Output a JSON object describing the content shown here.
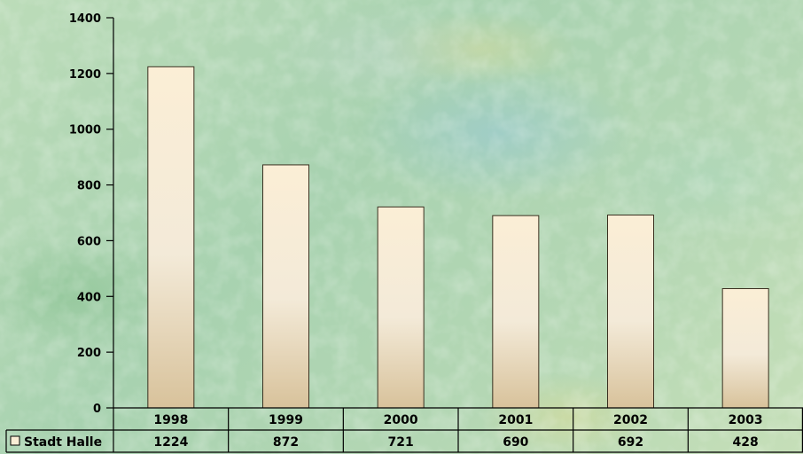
{
  "chart_data": {
    "type": "bar",
    "categories": [
      "1998",
      "1999",
      "2000",
      "2001",
      "2002",
      "2003"
    ],
    "series": [
      {
        "name": "Stadt Halle",
        "values": [
          1224,
          872,
          721,
          690,
          692,
          428
        ]
      }
    ],
    "ylim": [
      0,
      1400
    ],
    "yticks": [
      0,
      200,
      400,
      600,
      800,
      1000,
      1200,
      1400
    ],
    "grid": false,
    "legend": "data-table-left"
  },
  "colors": {
    "bar_top": "#fbeed6",
    "bar_mid": "#f3ead8",
    "bar_bottom": "#d8c29b",
    "axis": "#000000"
  }
}
